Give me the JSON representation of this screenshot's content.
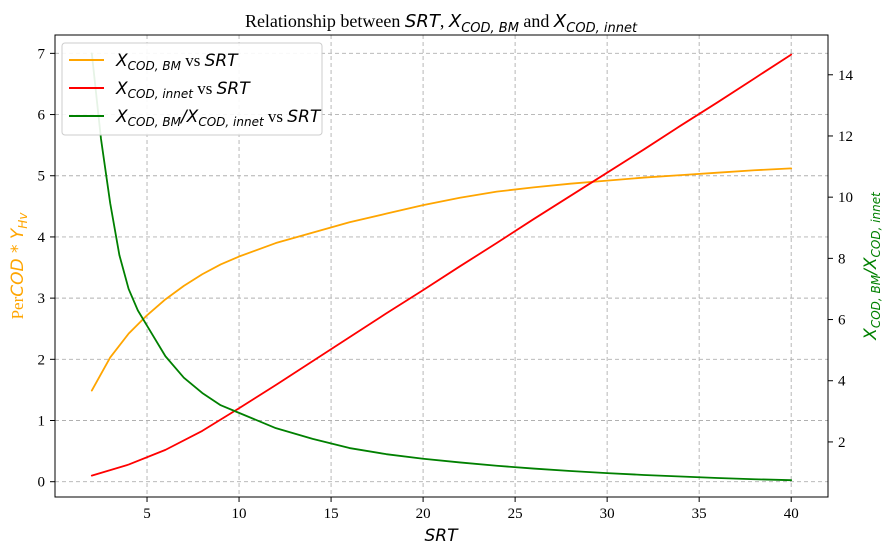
{
  "chart_data": {
    "type": "line",
    "title": "Relationship between SRT, X_COD,BM and X_COD,innet",
    "title_parts": {
      "prefix": "Relationship between ",
      "m1": "SRT",
      "comma": ", ",
      "m2_main": "X",
      "m2_sub": "COD, BM",
      "and": " and ",
      "m3_main": "X",
      "m3_sub": "COD, innet"
    },
    "xlabel": "SRT",
    "ylabel_left": {
      "prefix": "Per",
      "math": "COD * Y",
      "sub": "Hv"
    },
    "ylabel_right": {
      "main1": "X",
      "sub1": "COD, BM",
      "slash": "/",
      "main2": "X",
      "sub2": "COD, innet"
    },
    "xlim": [
      0,
      42
    ],
    "ylim_left": [
      -0.25,
      7.3
    ],
    "ylim_right": [
      0.2,
      15.3
    ],
    "x_ticks": [
      5,
      10,
      15,
      20,
      25,
      30,
      35,
      40
    ],
    "y_ticks_left": [
      0,
      1,
      2,
      3,
      4,
      5,
      6,
      7
    ],
    "y_ticks_right": [
      2,
      4,
      6,
      8,
      10,
      12,
      14
    ],
    "grid": true,
    "legend_position": "top-left",
    "series": [
      {
        "name": "X_COD,BM vs SRT",
        "axis": "left",
        "color": "#ffa500",
        "legend": {
          "main": "X",
          "sub": "COD, BM",
          "mid": " vs ",
          "tail": "SRT"
        },
        "x": [
          2,
          3,
          4,
          5,
          6,
          7,
          8,
          9,
          10,
          12,
          14,
          16,
          18,
          20,
          22,
          24,
          26,
          28,
          30,
          32,
          34,
          36,
          38,
          40
        ],
        "y": [
          1.49,
          2.03,
          2.42,
          2.72,
          2.98,
          3.2,
          3.39,
          3.55,
          3.68,
          3.9,
          4.07,
          4.24,
          4.38,
          4.52,
          4.64,
          4.74,
          4.81,
          4.87,
          4.92,
          4.97,
          5.01,
          5.05,
          5.09,
          5.12
        ]
      },
      {
        "name": "X_COD,innet vs SRT",
        "axis": "left",
        "color": "#ff0000",
        "legend": {
          "main": "X",
          "sub": "COD, innet",
          "mid": " vs ",
          "tail": "SRT"
        },
        "x": [
          2,
          4,
          6,
          8,
          10,
          12,
          14,
          16,
          18,
          20,
          22,
          24,
          26,
          28,
          30,
          32,
          34,
          36,
          38,
          40
        ],
        "y": [
          0.1,
          0.28,
          0.52,
          0.83,
          1.2,
          1.58,
          1.97,
          2.36,
          2.75,
          3.13,
          3.52,
          3.9,
          4.29,
          4.67,
          5.05,
          5.43,
          5.82,
          6.2,
          6.59,
          6.98
        ]
      },
      {
        "name": "X_COD,BM/X_COD,innet vs SRT",
        "axis": "right",
        "color": "#008000",
        "legend": {
          "main": "X",
          "sub": "COD, BM",
          "slash": "/",
          "main2": "X",
          "sub2": "COD, innet",
          "mid": " vs ",
          "tail": "SRT"
        },
        "x": [
          2,
          2.5,
          3,
          3.5,
          4,
          4.5,
          5,
          6,
          7,
          8,
          9,
          10,
          12,
          14,
          16,
          18,
          20,
          22,
          24,
          26,
          28,
          30,
          32,
          34,
          36,
          38,
          40
        ],
        "y": [
          14.7,
          11.9,
          9.8,
          8.1,
          7.0,
          6.3,
          5.8,
          4.8,
          4.1,
          3.6,
          3.2,
          2.95,
          2.45,
          2.1,
          1.8,
          1.6,
          1.45,
          1.33,
          1.22,
          1.13,
          1.05,
          0.98,
          0.92,
          0.87,
          0.82,
          0.78,
          0.75
        ]
      }
    ]
  }
}
